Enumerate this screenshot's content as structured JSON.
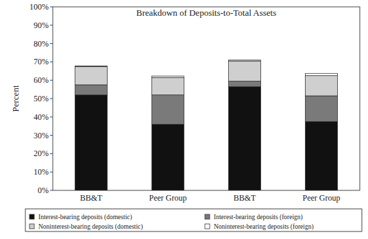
{
  "chart_data": {
    "type": "bar",
    "title": "Breakdown of Deposits-to-Total Assets",
    "ylabel": "Percent",
    "categories": [
      "BB&T",
      "Peer Group",
      "BB&T",
      "Peer Group"
    ],
    "series": [
      {
        "name": "Interest-bearing deposits (domestic)",
        "color": "#111111",
        "values": [
          52,
          36,
          56.5,
          37.5
        ]
      },
      {
        "name": "Interest-bearing deposits (foreign)",
        "color": "#7a7a7a",
        "values": [
          5.5,
          16,
          3,
          14
        ]
      },
      {
        "name": "Noninterest-bearing deposits (domestic)",
        "color": "#cfcfcf",
        "values": [
          10,
          9.5,
          11,
          11
        ]
      },
      {
        "name": "Noninterest-bearing deposits (foreign)",
        "color": "#ffffff",
        "values": [
          0.3,
          0.8,
          0.5,
          1.2
        ]
      }
    ],
    "ylim": [
      0,
      100
    ],
    "yticks": [
      {
        "value": 0,
        "label": "0%"
      },
      {
        "value": 10,
        "label": "10%"
      },
      {
        "value": 20,
        "label": "20%"
      },
      {
        "value": 30,
        "label": "30%"
      },
      {
        "value": 40,
        "label": "40%"
      },
      {
        "value": 50,
        "label": "50%"
      },
      {
        "value": 60,
        "label": "60%"
      },
      {
        "value": 70,
        "label": "70%"
      },
      {
        "value": 80,
        "label": "80%"
      },
      {
        "value": 90,
        "label": "90%"
      },
      {
        "value": 100,
        "label": "100%"
      }
    ],
    "stacked": true,
    "grid": false,
    "legend": "bottom"
  }
}
